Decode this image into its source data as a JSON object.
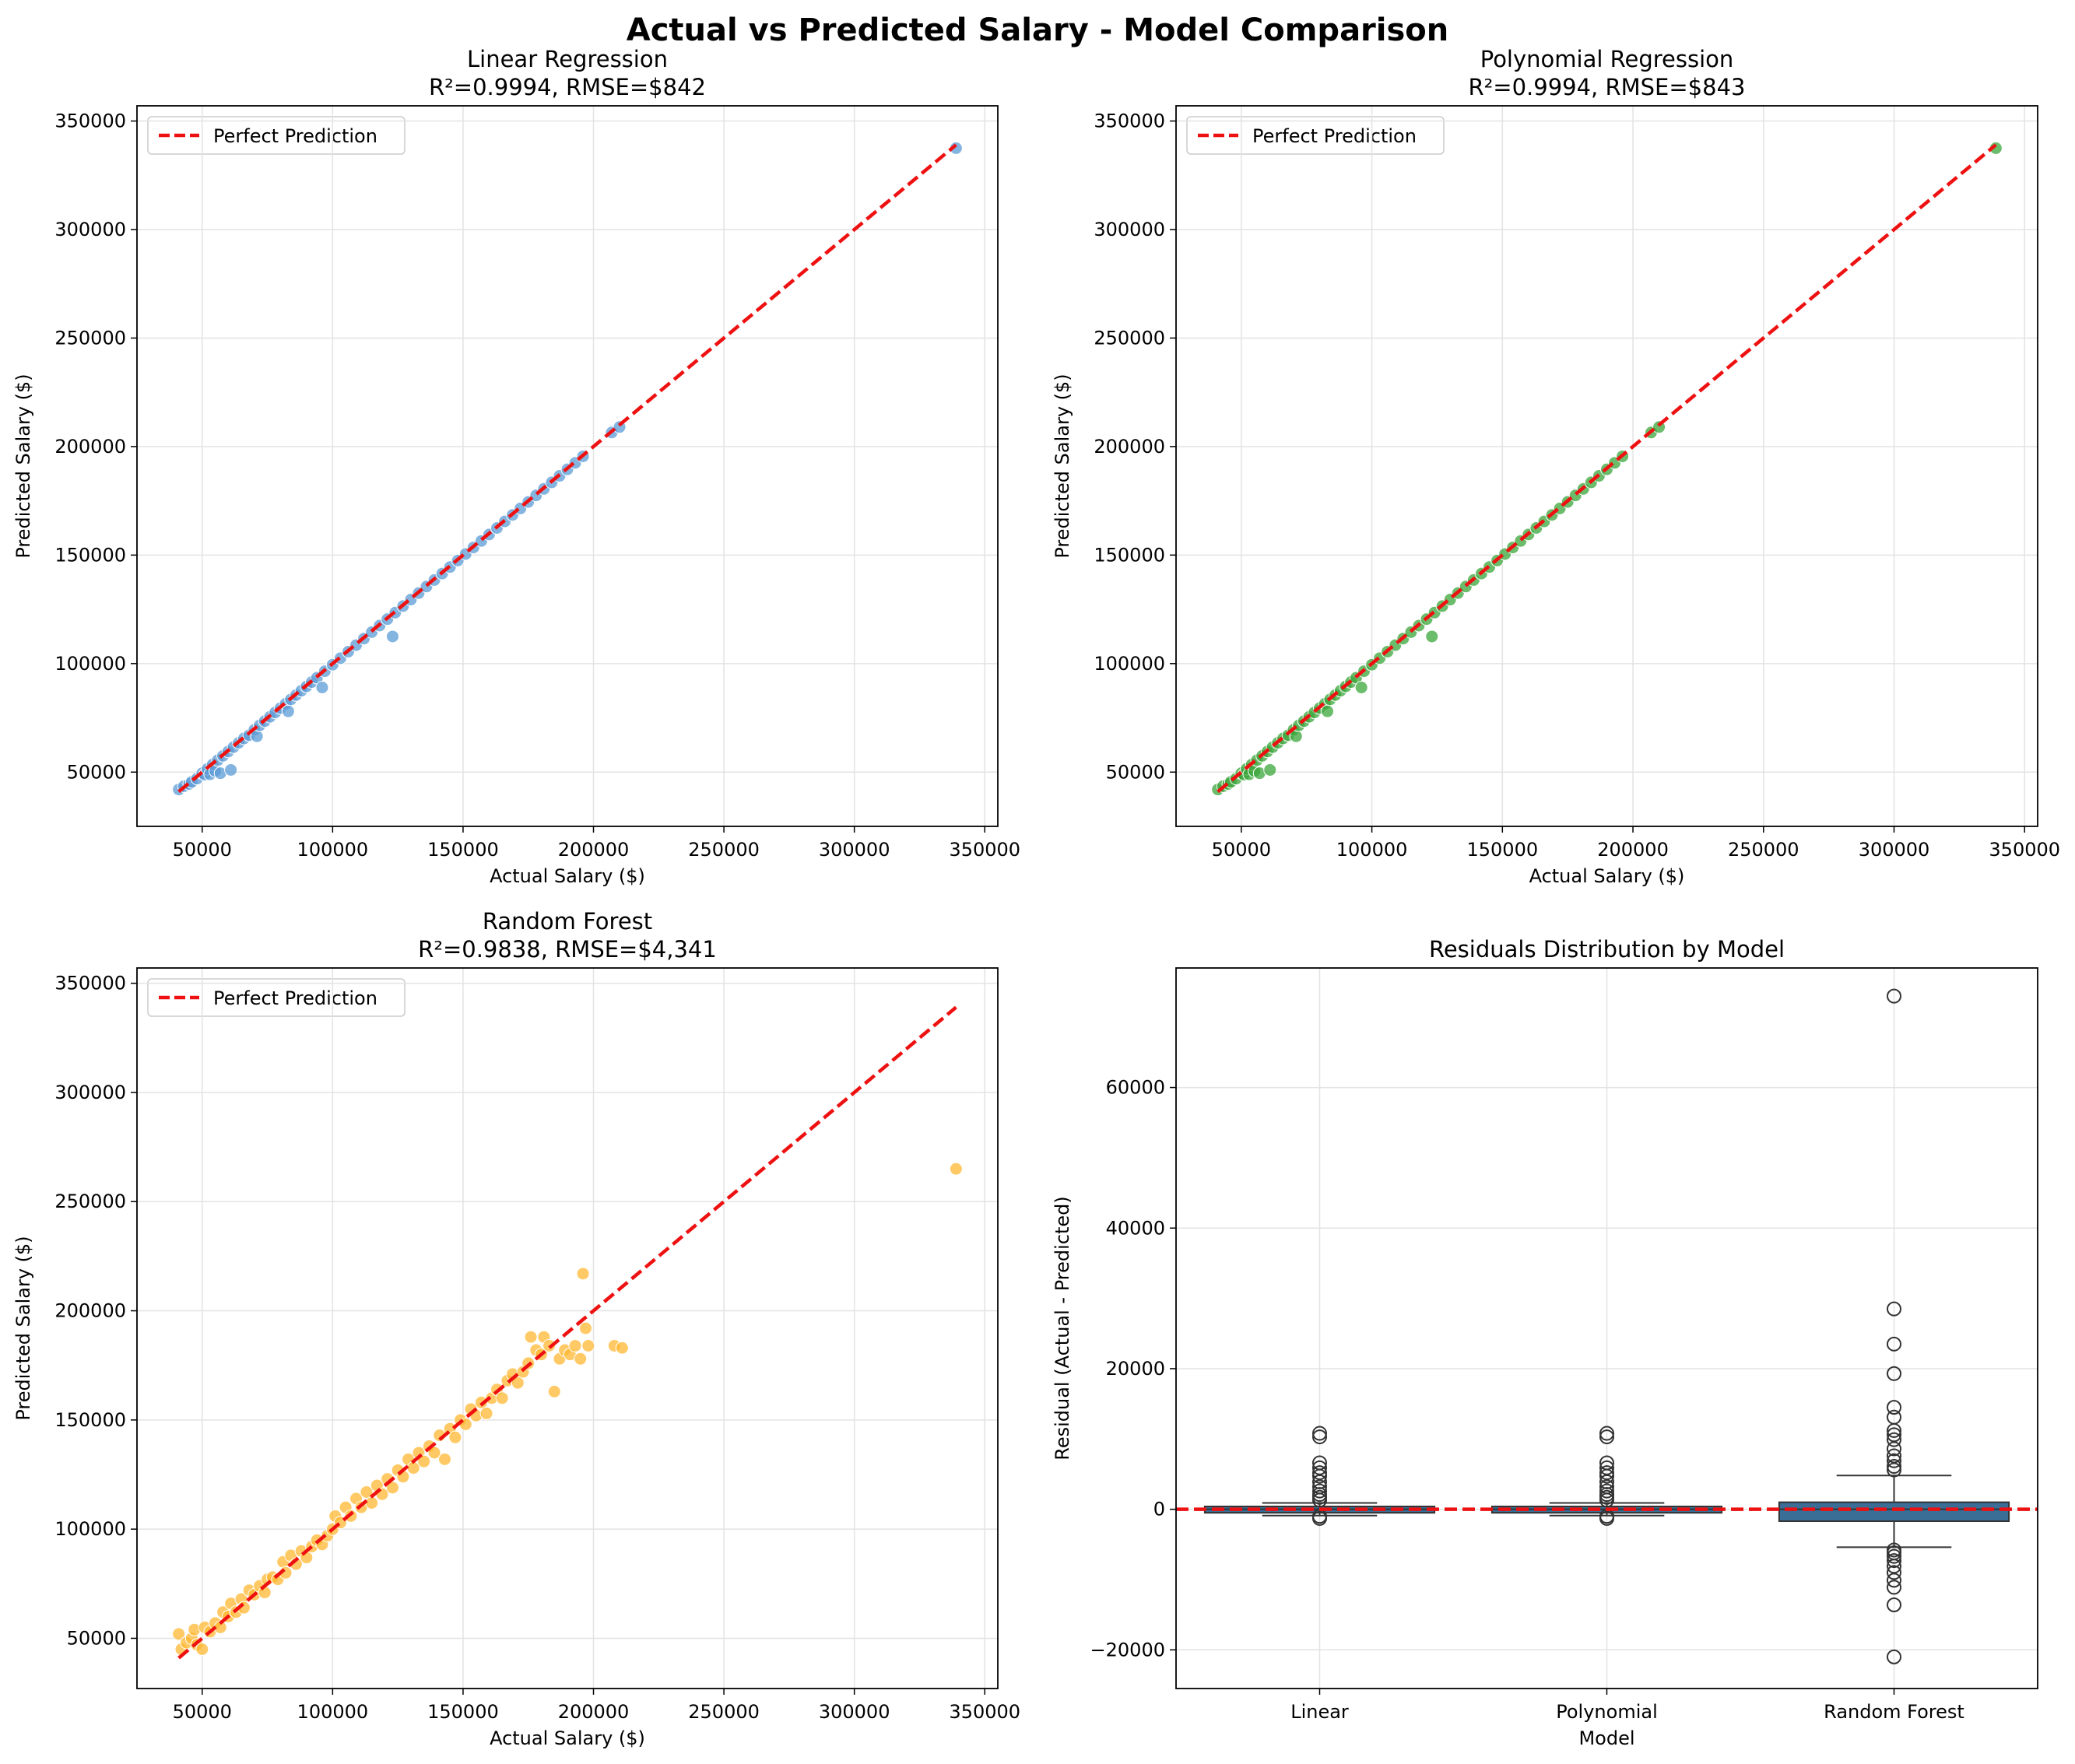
{
  "figure_title": "Actual vs Predicted Salary - Model Comparison",
  "colors": {
    "linear": "#5b9bd5",
    "polynomial": "#3aa53a",
    "random_forest": "#ffb833",
    "perfect_line": "#ee1111",
    "box_fill": "#3a6e96"
  },
  "chart_data": [
    {
      "type": "scatter",
      "title": "Linear Regression",
      "subtitle": "R²=0.9994, RMSE=$842",
      "xlabel": "Actual Salary ($)",
      "ylabel": "Predicted Salary ($)",
      "xlim": [
        25000,
        355000
      ],
      "ylim": [
        25000,
        357000
      ],
      "xticks": [
        50000,
        100000,
        150000,
        200000,
        250000,
        300000,
        350000
      ],
      "yticks": [
        50000,
        100000,
        150000,
        200000,
        250000,
        300000,
        350000
      ],
      "grid": true,
      "legend": {
        "label": "Perfect Prediction",
        "placement": "top-left"
      },
      "reference_line": [
        [
          41000,
          41000
        ],
        [
          339000,
          339000
        ]
      ],
      "points": [
        [
          41000,
          42000
        ],
        [
          43000,
          43500
        ],
        [
          45000,
          44500
        ],
        [
          46000,
          45500
        ],
        [
          48000,
          47000
        ],
        [
          50000,
          49500
        ],
        [
          51000,
          48800
        ],
        [
          52000,
          51500
        ],
        [
          53000,
          49000
        ],
        [
          54000,
          53500
        ],
        [
          55000,
          50500
        ],
        [
          56000,
          55500
        ],
        [
          57000,
          49500
        ],
        [
          58000,
          57500
        ],
        [
          60000,
          59500
        ],
        [
          61000,
          51000
        ],
        [
          62000,
          61500
        ],
        [
          64000,
          63500
        ],
        [
          66000,
          65500
        ],
        [
          68000,
          67000
        ],
        [
          70000,
          69500
        ],
        [
          71000,
          66500
        ],
        [
          72000,
          71500
        ],
        [
          74000,
          73500
        ],
        [
          76000,
          75500
        ],
        [
          78000,
          77500
        ],
        [
          80000,
          79500
        ],
        [
          82000,
          81500
        ],
        [
          83000,
          78000
        ],
        [
          84000,
          83500
        ],
        [
          86000,
          85500
        ],
        [
          88000,
          87500
        ],
        [
          90000,
          89500
        ],
        [
          92000,
          91500
        ],
        [
          94000,
          93500
        ],
        [
          96000,
          89000
        ],
        [
          97000,
          96500
        ],
        [
          100000,
          99500
        ],
        [
          103000,
          102500
        ],
        [
          106000,
          105500
        ],
        [
          109000,
          108500
        ],
        [
          112000,
          111500
        ],
        [
          115000,
          114500
        ],
        [
          118000,
          117500
        ],
        [
          121000,
          120500
        ],
        [
          123000,
          112500
        ],
        [
          124000,
          123500
        ],
        [
          127000,
          126500
        ],
        [
          130000,
          129500
        ],
        [
          133000,
          132500
        ],
        [
          136000,
          135500
        ],
        [
          139000,
          138500
        ],
        [
          142000,
          141500
        ],
        [
          145000,
          144500
        ],
        [
          148000,
          147500
        ],
        [
          151000,
          150500
        ],
        [
          154000,
          153500
        ],
        [
          157000,
          156500
        ],
        [
          160000,
          159500
        ],
        [
          163000,
          162500
        ],
        [
          166000,
          165500
        ],
        [
          169000,
          168500
        ],
        [
          172000,
          171500
        ],
        [
          175000,
          174500
        ],
        [
          178000,
          177500
        ],
        [
          181000,
          180500
        ],
        [
          184000,
          183500
        ],
        [
          187000,
          186500
        ],
        [
          190000,
          189500
        ],
        [
          193000,
          192500
        ],
        [
          196000,
          195500
        ],
        [
          207000,
          206500
        ],
        [
          210000,
          209000
        ],
        [
          339000,
          337500
        ]
      ]
    },
    {
      "type": "scatter",
      "title": "Polynomial Regression",
      "subtitle": "R²=0.9994, RMSE=$843",
      "xlabel": "Actual Salary ($)",
      "ylabel": "Predicted Salary ($)",
      "xlim": [
        25000,
        355000
      ],
      "ylim": [
        25000,
        357000
      ],
      "xticks": [
        50000,
        100000,
        150000,
        200000,
        250000,
        300000,
        350000
      ],
      "yticks": [
        50000,
        100000,
        150000,
        200000,
        250000,
        300000,
        350000
      ],
      "grid": true,
      "legend": {
        "label": "Perfect Prediction",
        "placement": "top-left"
      },
      "reference_line": [
        [
          41000,
          41000
        ],
        [
          339000,
          339000
        ]
      ],
      "points": [
        [
          41000,
          42000
        ],
        [
          43000,
          43500
        ],
        [
          45000,
          44500
        ],
        [
          46000,
          45500
        ],
        [
          48000,
          47000
        ],
        [
          50000,
          49500
        ],
        [
          51000,
          48800
        ],
        [
          52000,
          51500
        ],
        [
          53000,
          49000
        ],
        [
          54000,
          53500
        ],
        [
          55000,
          50500
        ],
        [
          56000,
          55500
        ],
        [
          57000,
          49500
        ],
        [
          58000,
          57500
        ],
        [
          60000,
          59500
        ],
        [
          61000,
          51000
        ],
        [
          62000,
          61500
        ],
        [
          64000,
          63500
        ],
        [
          66000,
          65500
        ],
        [
          68000,
          67000
        ],
        [
          70000,
          69500
        ],
        [
          71000,
          66500
        ],
        [
          72000,
          71500
        ],
        [
          74000,
          73500
        ],
        [
          76000,
          75500
        ],
        [
          78000,
          77500
        ],
        [
          80000,
          79500
        ],
        [
          82000,
          81500
        ],
        [
          83000,
          78000
        ],
        [
          84000,
          83500
        ],
        [
          86000,
          85500
        ],
        [
          88000,
          87500
        ],
        [
          90000,
          89500
        ],
        [
          92000,
          91500
        ],
        [
          94000,
          93500
        ],
        [
          96000,
          89000
        ],
        [
          97000,
          96500
        ],
        [
          100000,
          99500
        ],
        [
          103000,
          102500
        ],
        [
          106000,
          105500
        ],
        [
          109000,
          108500
        ],
        [
          112000,
          111500
        ],
        [
          115000,
          114500
        ],
        [
          118000,
          117500
        ],
        [
          121000,
          120500
        ],
        [
          123000,
          112500
        ],
        [
          124000,
          123500
        ],
        [
          127000,
          126500
        ],
        [
          130000,
          129500
        ],
        [
          133000,
          132500
        ],
        [
          136000,
          135500
        ],
        [
          139000,
          138500
        ],
        [
          142000,
          141500
        ],
        [
          145000,
          144500
        ],
        [
          148000,
          147500
        ],
        [
          151000,
          150500
        ],
        [
          154000,
          153500
        ],
        [
          157000,
          156500
        ],
        [
          160000,
          159500
        ],
        [
          163000,
          162500
        ],
        [
          166000,
          165500
        ],
        [
          169000,
          168500
        ],
        [
          172000,
          171500
        ],
        [
          175000,
          174500
        ],
        [
          178000,
          177500
        ],
        [
          181000,
          180500
        ],
        [
          184000,
          183500
        ],
        [
          187000,
          186500
        ],
        [
          190000,
          189500
        ],
        [
          193000,
          192500
        ],
        [
          196000,
          195500
        ],
        [
          207000,
          206500
        ],
        [
          210000,
          209000
        ],
        [
          339000,
          337500
        ]
      ]
    },
    {
      "type": "scatter",
      "title": "Random Forest",
      "subtitle": "R²=0.9838, RMSE=$4,341",
      "xlabel": "Actual Salary ($)",
      "ylabel": "Predicted Salary ($)",
      "xlim": [
        25000,
        355000
      ],
      "ylim": [
        27000,
        357000
      ],
      "xticks": [
        50000,
        100000,
        150000,
        200000,
        250000,
        300000,
        350000
      ],
      "yticks": [
        50000,
        100000,
        150000,
        200000,
        250000,
        300000,
        350000
      ],
      "grid": true,
      "legend": {
        "label": "Perfect Prediction",
        "placement": "top-left"
      },
      "reference_line": [
        [
          41000,
          41000
        ],
        [
          339000,
          339000
        ]
      ],
      "points": [
        [
          41000,
          52000
        ],
        [
          42000,
          45000
        ],
        [
          44000,
          48000
        ],
        [
          46000,
          50000
        ],
        [
          47000,
          54000
        ],
        [
          48000,
          47000
        ],
        [
          50000,
          45000
        ],
        [
          51000,
          55000
        ],
        [
          53000,
          53000
        ],
        [
          55000,
          57000
        ],
        [
          57000,
          55000
        ],
        [
          58000,
          62000
        ],
        [
          60000,
          60000
        ],
        [
          61000,
          66000
        ],
        [
          63000,
          62000
        ],
        [
          65000,
          68000
        ],
        [
          66000,
          64000
        ],
        [
          68000,
          72000
        ],
        [
          70000,
          70000
        ],
        [
          72000,
          74000
        ],
        [
          74000,
          71000
        ],
        [
          75000,
          77000
        ],
        [
          77000,
          78000
        ],
        [
          79000,
          77000
        ],
        [
          81000,
          85000
        ],
        [
          82000,
          80000
        ],
        [
          84000,
          88000
        ],
        [
          86000,
          84000
        ],
        [
          88000,
          90000
        ],
        [
          90000,
          87000
        ],
        [
          92000,
          92000
        ],
        [
          94000,
          95000
        ],
        [
          96000,
          93000
        ],
        [
          98000,
          97000
        ],
        [
          100000,
          100000
        ],
        [
          101000,
          106000
        ],
        [
          103000,
          103000
        ],
        [
          105000,
          110000
        ],
        [
          107000,
          106000
        ],
        [
          109000,
          114000
        ],
        [
          111000,
          110000
        ],
        [
          113000,
          117000
        ],
        [
          115000,
          112000
        ],
        [
          117000,
          120000
        ],
        [
          119000,
          116000
        ],
        [
          121000,
          123000
        ],
        [
          123000,
          119000
        ],
        [
          125000,
          127000
        ],
        [
          127000,
          124000
        ],
        [
          129000,
          132000
        ],
        [
          131000,
          128000
        ],
        [
          133000,
          135000
        ],
        [
          135000,
          131000
        ],
        [
          137000,
          138000
        ],
        [
          139000,
          135000
        ],
        [
          141000,
          143000
        ],
        [
          143000,
          132000
        ],
        [
          145000,
          146000
        ],
        [
          147000,
          142000
        ],
        [
          149000,
          150000
        ],
        [
          151000,
          148000
        ],
        [
          153000,
          155000
        ],
        [
          155000,
          152000
        ],
        [
          157000,
          158000
        ],
        [
          159000,
          153000
        ],
        [
          161000,
          160000
        ],
        [
          163000,
          164000
        ],
        [
          165000,
          160000
        ],
        [
          167000,
          168000
        ],
        [
          169000,
          171000
        ],
        [
          171000,
          167000
        ],
        [
          173000,
          172000
        ],
        [
          175000,
          176000
        ],
        [
          176000,
          188000
        ],
        [
          178000,
          182000
        ],
        [
          180000,
          180000
        ],
        [
          181000,
          188000
        ],
        [
          183000,
          184000
        ],
        [
          185000,
          163000
        ],
        [
          187000,
          178000
        ],
        [
          189000,
          182000
        ],
        [
          191000,
          180000
        ],
        [
          193000,
          184000
        ],
        [
          195000,
          178000
        ],
        [
          196000,
          217000
        ],
        [
          197000,
          192000
        ],
        [
          198000,
          184000
        ],
        [
          208000,
          184000
        ],
        [
          211000,
          183000
        ],
        [
          339000,
          265000
        ]
      ]
    },
    {
      "type": "box",
      "title": "Residuals Distribution by Model",
      "xlabel": "Model",
      "ylabel": "Residual (Actual - Predicted)",
      "ylim": [
        -25500,
        77000
      ],
      "yticks": [
        -20000,
        0,
        20000,
        40000,
        60000
      ],
      "grid": true,
      "zero_line": 0,
      "categories": [
        "Linear",
        "Polynomial",
        "Random Forest"
      ],
      "boxes": [
        {
          "q1": -500,
          "median": 0,
          "q3": 400,
          "whisker_low": -900,
          "whisker_high": 900,
          "outliers": [
            10800,
            10300,
            6600,
            5900,
            5200,
            4700,
            3900,
            3200,
            2600,
            2100,
            1700,
            1300,
            -1000,
            -1300
          ]
        },
        {
          "q1": -500,
          "median": 0,
          "q3": 400,
          "whisker_low": -900,
          "whisker_high": 900,
          "outliers": [
            10800,
            10300,
            6600,
            5900,
            5200,
            4700,
            3900,
            3200,
            2600,
            2100,
            1700,
            1300,
            -1000,
            -1300
          ]
        },
        {
          "q1": -1700,
          "median": 0,
          "q3": 1000,
          "whisker_low": -5400,
          "whisker_high": 4800,
          "outliers": [
            73000,
            28500,
            23500,
            19300,
            14500,
            13100,
            11200,
            10600,
            9900,
            8600,
            7600,
            6900,
            6100,
            5600,
            -5800,
            -6200,
            -6700,
            -7300,
            -8100,
            -9000,
            -10100,
            -11100,
            -13600,
            -21000
          ]
        }
      ]
    }
  ]
}
